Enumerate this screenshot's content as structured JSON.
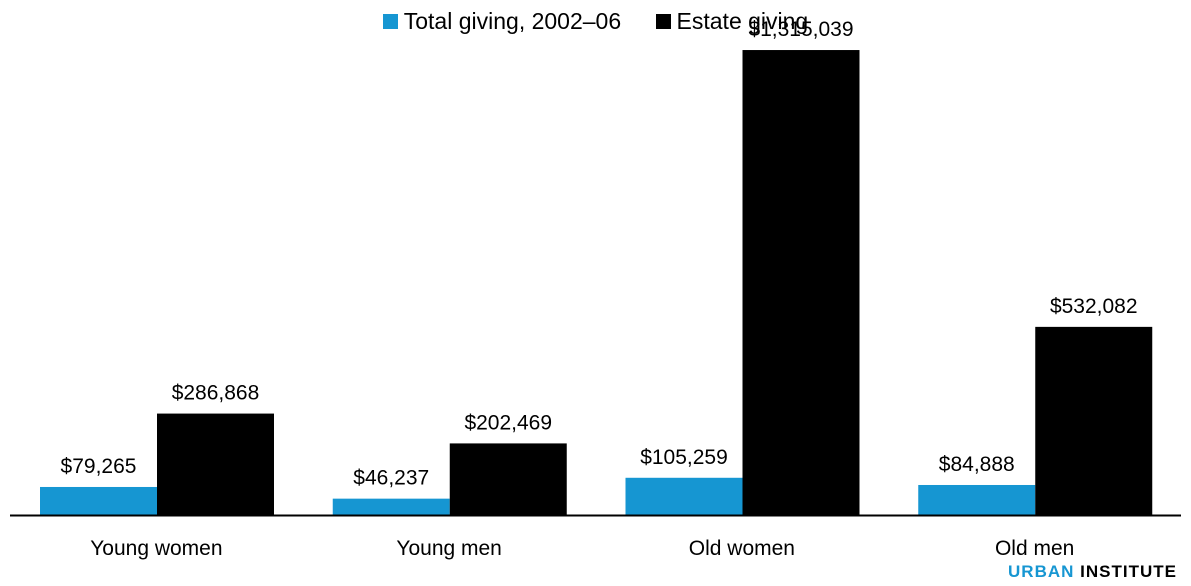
{
  "chart_data": {
    "type": "bar",
    "categories": [
      "Young women",
      "Young men",
      "Old women",
      "Old men"
    ],
    "series": [
      {
        "name": "Total giving, 2002–06",
        "values": [
          79265,
          46237,
          105259,
          84888
        ],
        "labels": [
          "$79,265",
          "$46,237",
          "$105,259",
          "$84,888"
        ]
      },
      {
        "name": "Estate giving",
        "values": [
          286868,
          202469,
          1315039,
          532082
        ],
        "labels": [
          "$286,868",
          "$202,469",
          "$1,315,039",
          "$532,082"
        ]
      }
    ],
    "ylim": [
      0,
      1400000
    ],
    "grid": false,
    "legend_position": "top-center"
  },
  "colors": {
    "series": [
      "#1696d2",
      "#000000"
    ],
    "brand_accent": "#1696d2"
  },
  "legend": {
    "items": [
      "Total giving, 2002–06",
      "Estate giving"
    ]
  },
  "branding": {
    "part1": "URBAN",
    "part2": "INSTITUTE"
  }
}
